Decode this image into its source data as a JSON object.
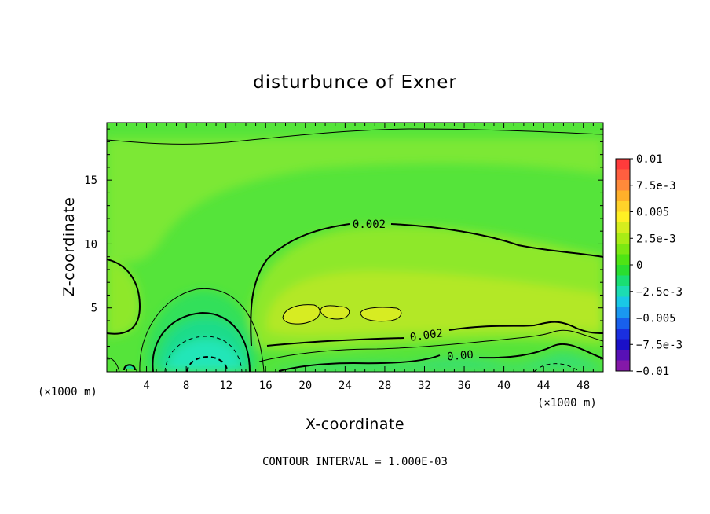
{
  "chart_data": {
    "type": "heatmap",
    "title": "disturbunce of Exner",
    "xlabel": "X-coordinate",
    "ylabel": "Z-coordinate",
    "x_unit": "(×1000 m)",
    "x_unit_right": "(×1000 m)",
    "xlim": [
      0,
      50
    ],
    "ylim": [
      0,
      19.5
    ],
    "x_ticks": [
      4,
      8,
      12,
      16,
      20,
      24,
      28,
      32,
      36,
      40,
      44,
      48
    ],
    "x_tick_labels": [
      "4",
      "8",
      "12",
      "16",
      "20",
      "24",
      "28",
      "32",
      "36",
      "40",
      "44",
      "48"
    ],
    "y_ticks": [
      5,
      10,
      15
    ],
    "y_tick_labels": [
      "5",
      "10",
      "15"
    ],
    "contour_labels": [
      "0.002",
      "0.002",
      "0.00"
    ],
    "colorbar": {
      "min": -0.01,
      "max": 0.01,
      "labels": [
        "0.01",
        "7.5e-3",
        "0.005",
        "2.5e-3",
        "0",
        "−2.5e-3",
        "−0.005",
        "−7.5e-3",
        "−0.01"
      ],
      "colors": [
        "#ff3b3b",
        "#ff5f3f",
        "#ff8a3a",
        "#ffb02a",
        "#ffd22a",
        "#fff024",
        "#d6ee1e",
        "#a9ec15",
        "#7be812",
        "#4fe414",
        "#2ade30",
        "#1ade73",
        "#1cdcb2",
        "#19c8e6",
        "#1a98f0",
        "#1860ec",
        "#1a2fe0",
        "#1a10c8",
        "#5810b6",
        "#8418a8"
      ]
    },
    "note": "CONTOUR INTERVAL = 1.000E-03"
  }
}
